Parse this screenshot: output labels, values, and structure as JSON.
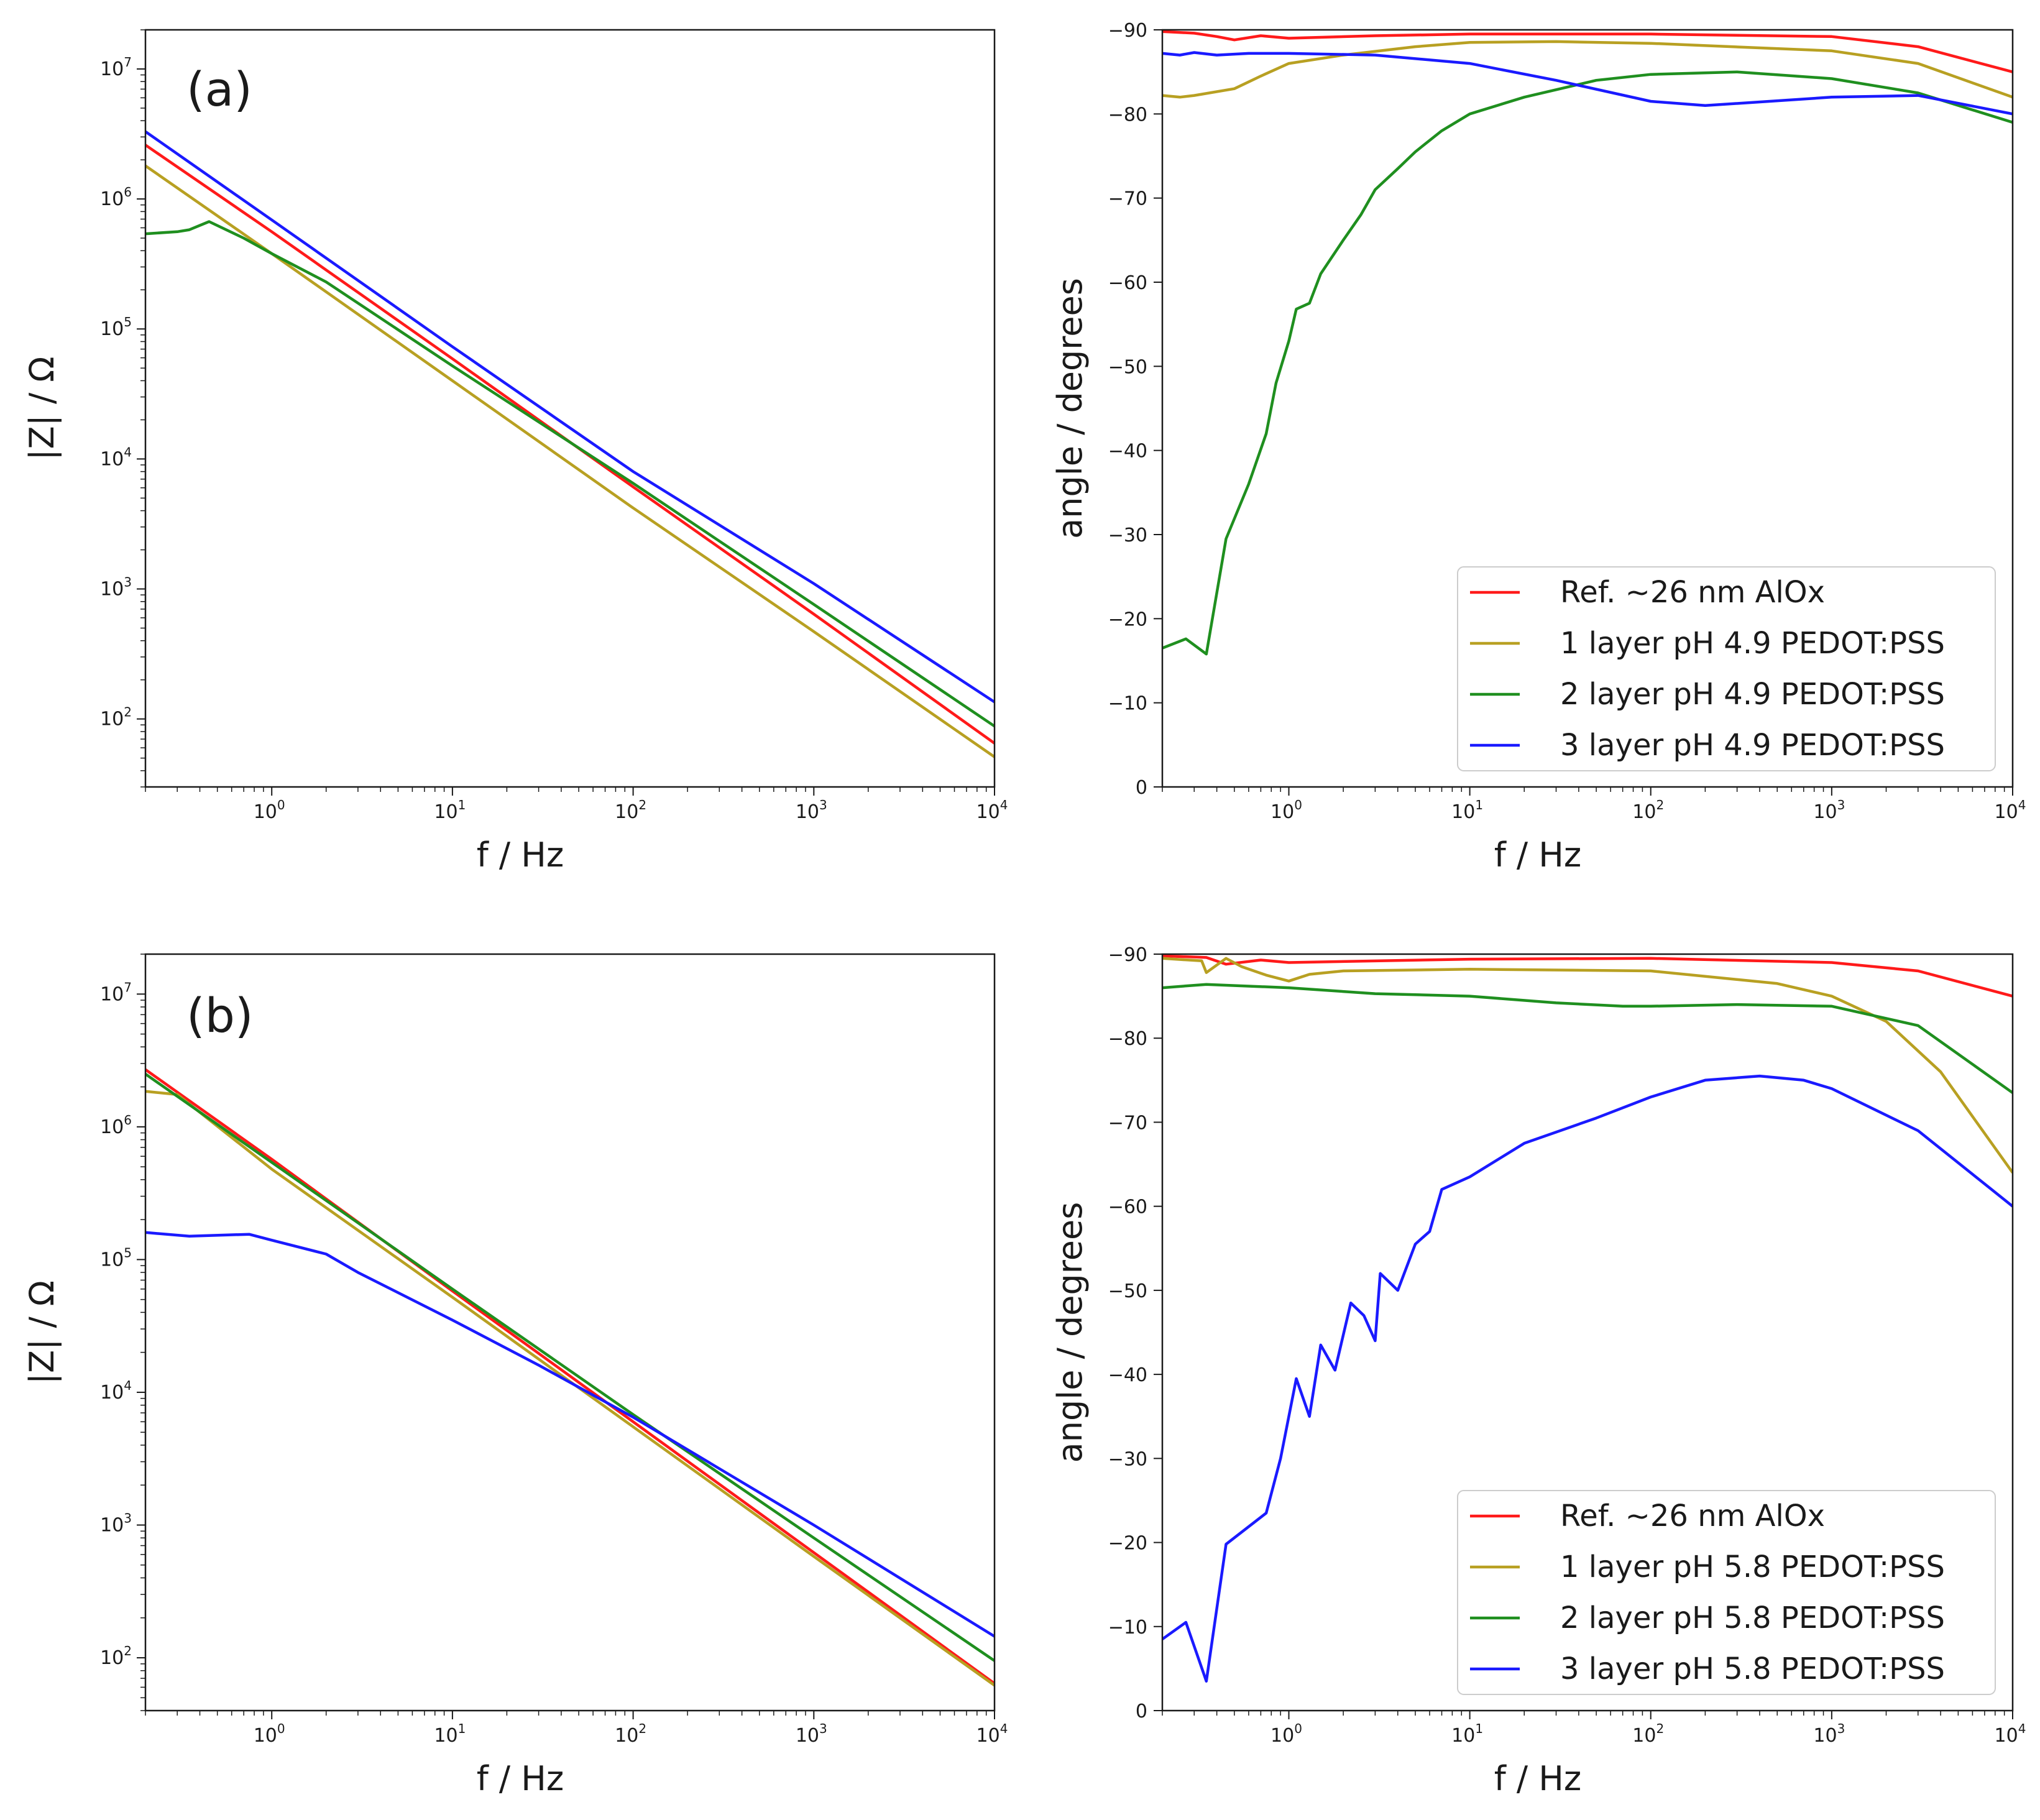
{
  "figure": {
    "background": "#ffffff"
  },
  "chart_data": [
    {
      "id": "a_mag",
      "type": "line",
      "panel_label": "(a)",
      "title": "",
      "xlabel": "f / Hz",
      "ylabel": "|Z| / Ω",
      "xscale": "log",
      "yscale": "log",
      "xlim": [
        0.2,
        10000
      ],
      "ylim": [
        30,
        20000000
      ],
      "xticks": [
        {
          "base": "10",
          "exp": "0",
          "value": 1
        },
        {
          "base": "10",
          "exp": "1",
          "value": 10
        },
        {
          "base": "10",
          "exp": "2",
          "value": 100
        },
        {
          "base": "10",
          "exp": "3",
          "value": 1000
        },
        {
          "base": "10",
          "exp": "4",
          "value": 10000
        }
      ],
      "yticks": [
        {
          "base": "10",
          "exp": "2",
          "value": 100
        },
        {
          "base": "10",
          "exp": "3",
          "value": 1000
        },
        {
          "base": "10",
          "exp": "4",
          "value": 10000
        },
        {
          "base": "10",
          "exp": "5",
          "value": 100000
        },
        {
          "base": "10",
          "exp": "6",
          "value": 1000000
        },
        {
          "base": "10",
          "exp": "7",
          "value": 10000000
        }
      ],
      "grid": false,
      "legend": null,
      "series": [
        {
          "name": "Ref. ~26 nm AlOx",
          "color": "#ff1a1a",
          "x": [
            0.2,
            1,
            10,
            100,
            1000,
            10000
          ],
          "y": [
            2600000,
            560000,
            59000,
            6100,
            640,
            65
          ]
        },
        {
          "name": "1 layer pH 4.9 PEDOT:PSS",
          "color": "#b8a022",
          "x": [
            0.2,
            1,
            10,
            100,
            1000,
            10000
          ],
          "y": [
            1800000,
            380000,
            40000,
            4200,
            470,
            51
          ]
        },
        {
          "name": "2 layer pH 4.9 PEDOT:PSS",
          "color": "#1f8f1f",
          "x": [
            0.2,
            0.3,
            0.35,
            0.45,
            0.7,
            1,
            2,
            10,
            100,
            1000,
            10000
          ],
          "y": [
            540000,
            560000,
            580000,
            670000,
            500000,
            380000,
            230000,
            52000,
            6500,
            760,
            88
          ]
        },
        {
          "name": "3 layer pH 4.9 PEDOT:PSS",
          "color": "#1a1aff",
          "x": [
            0.2,
            1,
            10,
            100,
            1000,
            10000
          ],
          "y": [
            3300000,
            690000,
            73000,
            8000,
            1100,
            135
          ]
        }
      ]
    },
    {
      "id": "a_phase",
      "type": "line",
      "panel_label": "",
      "title": "",
      "xlabel": "f / Hz",
      "ylabel": "angle / degrees",
      "xscale": "log",
      "yscale": "linear",
      "y_inverted": true,
      "xlim": [
        0.2,
        10000
      ],
      "ylim": [
        0,
        -90
      ],
      "xticks": [
        {
          "base": "10",
          "exp": "0",
          "value": 1
        },
        {
          "base": "10",
          "exp": "1",
          "value": 10
        },
        {
          "base": "10",
          "exp": "2",
          "value": 100
        },
        {
          "base": "10",
          "exp": "3",
          "value": 1000
        },
        {
          "base": "10",
          "exp": "4",
          "value": 10000
        }
      ],
      "yticks": [
        {
          "label": "−90",
          "value": -90
        },
        {
          "label": "−80",
          "value": -80
        },
        {
          "label": "−70",
          "value": -70
        },
        {
          "label": "−60",
          "value": -60
        },
        {
          "label": "−50",
          "value": -50
        },
        {
          "label": "−40",
          "value": -40
        },
        {
          "label": "−30",
          "value": -30
        },
        {
          "label": "−20",
          "value": -20
        },
        {
          "label": "−10",
          "value": -10
        },
        {
          "label": "0",
          "value": 0
        }
      ],
      "grid": false,
      "legend": "lower-right",
      "series": [
        {
          "name": "Ref. ~26 nm AlOx",
          "color": "#ff1a1a",
          "x": [
            0.2,
            0.3,
            0.4,
            0.5,
            0.7,
            1,
            3,
            10,
            100,
            1000,
            3000,
            10000
          ],
          "y": [
            -89.8,
            -89.6,
            -89.2,
            -88.8,
            -89.3,
            -89.0,
            -89.3,
            -89.5,
            -89.5,
            -89.2,
            -88.0,
            -85.0
          ]
        },
        {
          "name": "1 layer pH 4.9 PEDOT:PSS",
          "color": "#b8a022",
          "x": [
            0.2,
            0.25,
            0.3,
            0.5,
            0.7,
            1,
            2,
            5,
            10,
            30,
            100,
            1000,
            3000,
            10000
          ],
          "y": [
            -82.2,
            -82.0,
            -82.2,
            -83.0,
            -84.5,
            -86.0,
            -87.0,
            -88.0,
            -88.5,
            -88.6,
            -88.4,
            -87.5,
            -86.0,
            -82.0
          ]
        },
        {
          "name": "2 layer pH 4.9 PEDOT:PSS",
          "color": "#1f8f1f",
          "x": [
            0.2,
            0.27,
            0.35,
            0.45,
            0.6,
            0.75,
            0.85,
            1,
            1.1,
            1.3,
            1.5,
            2,
            2.5,
            3,
            4,
            5,
            7,
            10,
            20,
            50,
            100,
            300,
            1000,
            3000,
            10000
          ],
          "y": [
            -16.5,
            -17.6,
            -15.8,
            -29.5,
            -36,
            -42,
            -48,
            -53,
            -56.8,
            -57.5,
            -61,
            -65,
            -68,
            -71,
            -73.5,
            -75.5,
            -78,
            -80,
            -82,
            -84,
            -84.7,
            -85.0,
            -84.2,
            -82.5,
            -79.0
          ]
        },
        {
          "name": "3 layer pH 4.9 PEDOT:PSS",
          "color": "#1a1aff",
          "x": [
            0.2,
            0.25,
            0.3,
            0.4,
            0.6,
            1,
            3,
            10,
            30,
            100,
            200,
            1000,
            3000,
            10000
          ],
          "y": [
            -87.2,
            -87.0,
            -87.3,
            -87.0,
            -87.2,
            -87.2,
            -87.0,
            -86.0,
            -84.0,
            -81.5,
            -81.0,
            -82.0,
            -82.2,
            -80.0
          ]
        }
      ]
    },
    {
      "id": "b_mag",
      "type": "line",
      "panel_label": "(b)",
      "title": "",
      "xlabel": "f / Hz",
      "ylabel": "|Z| / Ω",
      "xscale": "log",
      "yscale": "log",
      "xlim": [
        0.2,
        10000
      ],
      "ylim": [
        40,
        20000000
      ],
      "xticks": [
        {
          "base": "10",
          "exp": "0",
          "value": 1
        },
        {
          "base": "10",
          "exp": "1",
          "value": 10
        },
        {
          "base": "10",
          "exp": "2",
          "value": 100
        },
        {
          "base": "10",
          "exp": "3",
          "value": 1000
        },
        {
          "base": "10",
          "exp": "4",
          "value": 10000
        }
      ],
      "yticks": [
        {
          "base": "10",
          "exp": "2",
          "value": 100
        },
        {
          "base": "10",
          "exp": "3",
          "value": 1000
        },
        {
          "base": "10",
          "exp": "4",
          "value": 10000
        },
        {
          "base": "10",
          "exp": "5",
          "value": 100000
        },
        {
          "base": "10",
          "exp": "6",
          "value": 1000000
        },
        {
          "base": "10",
          "exp": "7",
          "value": 10000000
        }
      ],
      "grid": false,
      "legend": null,
      "series": [
        {
          "name": "Ref. ~26 nm AlOx",
          "color": "#ff1a1a",
          "x": [
            0.2,
            1,
            10,
            100,
            1000,
            10000
          ],
          "y": [
            2700000,
            570000,
            58000,
            6000,
            620,
            64
          ]
        },
        {
          "name": "1 layer pH 5.8 PEDOT:PSS",
          "color": "#b8a022",
          "x": [
            0.2,
            0.3,
            1,
            10,
            100,
            1000,
            10000
          ],
          "y": [
            1850000,
            1750000,
            480000,
            52000,
            5500,
            580,
            62
          ]
        },
        {
          "name": "2 layer pH 5.8 PEDOT:PSS",
          "color": "#1f8f1f",
          "x": [
            0.2,
            1,
            10,
            100,
            1000,
            10000
          ],
          "y": [
            2500000,
            540000,
            60000,
            6800,
            800,
            95
          ]
        },
        {
          "name": "3 layer pH 5.8 PEDOT:PSS",
          "color": "#1a1aff",
          "x": [
            0.2,
            0.35,
            0.75,
            1,
            2,
            3,
            10,
            30,
            100,
            1000,
            10000
          ],
          "y": [
            160000,
            150000,
            155000,
            140000,
            110000,
            80000,
            35000,
            16000,
            6500,
            1000,
            145
          ]
        }
      ]
    },
    {
      "id": "b_phase",
      "type": "line",
      "panel_label": "",
      "title": "",
      "xlabel": "f / Hz",
      "ylabel": "angle / degrees",
      "xscale": "log",
      "yscale": "linear",
      "y_inverted": true,
      "xlim": [
        0.2,
        10000
      ],
      "ylim": [
        0,
        -90
      ],
      "xticks": [
        {
          "base": "10",
          "exp": "0",
          "value": 1
        },
        {
          "base": "10",
          "exp": "1",
          "value": 10
        },
        {
          "base": "10",
          "exp": "2",
          "value": 100
        },
        {
          "base": "10",
          "exp": "3",
          "value": 1000
        },
        {
          "base": "10",
          "exp": "4",
          "value": 10000
        }
      ],
      "yticks": [
        {
          "label": "−90",
          "value": -90
        },
        {
          "label": "−80",
          "value": -80
        },
        {
          "label": "−70",
          "value": -70
        },
        {
          "label": "−60",
          "value": -60
        },
        {
          "label": "−50",
          "value": -50
        },
        {
          "label": "−40",
          "value": -40
        },
        {
          "label": "−30",
          "value": -30
        },
        {
          "label": "−20",
          "value": -20
        },
        {
          "label": "−10",
          "value": -10
        },
        {
          "label": "0",
          "value": 0
        }
      ],
      "grid": false,
      "legend": "lower-right",
      "series": [
        {
          "name": "Ref. ~26 nm AlOx",
          "color": "#ff1a1a",
          "x": [
            0.2,
            0.35,
            0.45,
            0.7,
            1,
            10,
            100,
            1000,
            3000,
            10000
          ],
          "y": [
            -89.8,
            -89.6,
            -88.8,
            -89.3,
            -89.0,
            -89.4,
            -89.5,
            -89.0,
            -88.0,
            -85.0
          ]
        },
        {
          "name": "1 layer pH 5.8 PEDOT:PSS",
          "color": "#b8a022",
          "x": [
            0.2,
            0.33,
            0.35,
            0.45,
            0.55,
            0.75,
            1,
            1.3,
            2,
            10,
            100,
            500,
            1000,
            2000,
            4000,
            10000
          ],
          "y": [
            -89.5,
            -89.2,
            -87.8,
            -89.5,
            -88.5,
            -87.5,
            -86.8,
            -87.6,
            -88.0,
            -88.2,
            -88.0,
            -86.5,
            -85.0,
            -82.0,
            -76.0,
            -64.0
          ]
        },
        {
          "name": "2 layer pH 5.8 PEDOT:PSS",
          "color": "#1f8f1f",
          "x": [
            0.2,
            0.35,
            1,
            3,
            10,
            30,
            70,
            100,
            300,
            1000,
            3000,
            10000
          ],
          "y": [
            -86.0,
            -86.4,
            -86.0,
            -85.3,
            -85.0,
            -84.2,
            -83.8,
            -83.8,
            -84.0,
            -83.8,
            -81.5,
            -73.5
          ]
        },
        {
          "name": "3 layer pH 5.8 PEDOT:PSS",
          "color": "#1a1aff",
          "x": [
            0.2,
            0.27,
            0.35,
            0.45,
            0.75,
            0.9,
            1.1,
            1.3,
            1.5,
            1.8,
            2.2,
            2.6,
            3.0,
            3.2,
            4.0,
            5.0,
            6.0,
            7.0,
            10,
            20,
            50,
            100,
            200,
            400,
            700,
            1000,
            3000,
            10000
          ],
          "y": [
            -8.5,
            -10.5,
            -3.5,
            -19.8,
            -23.5,
            -30,
            -39.5,
            -35,
            -43.5,
            -40.5,
            -48.5,
            -47.0,
            -44.0,
            -52.0,
            -50.0,
            -55.5,
            -57.0,
            -62.0,
            -63.5,
            -67.5,
            -70.5,
            -73.0,
            -75.0,
            -75.5,
            -75.0,
            -74.0,
            -69.0,
            -60.0
          ]
        }
      ]
    }
  ]
}
